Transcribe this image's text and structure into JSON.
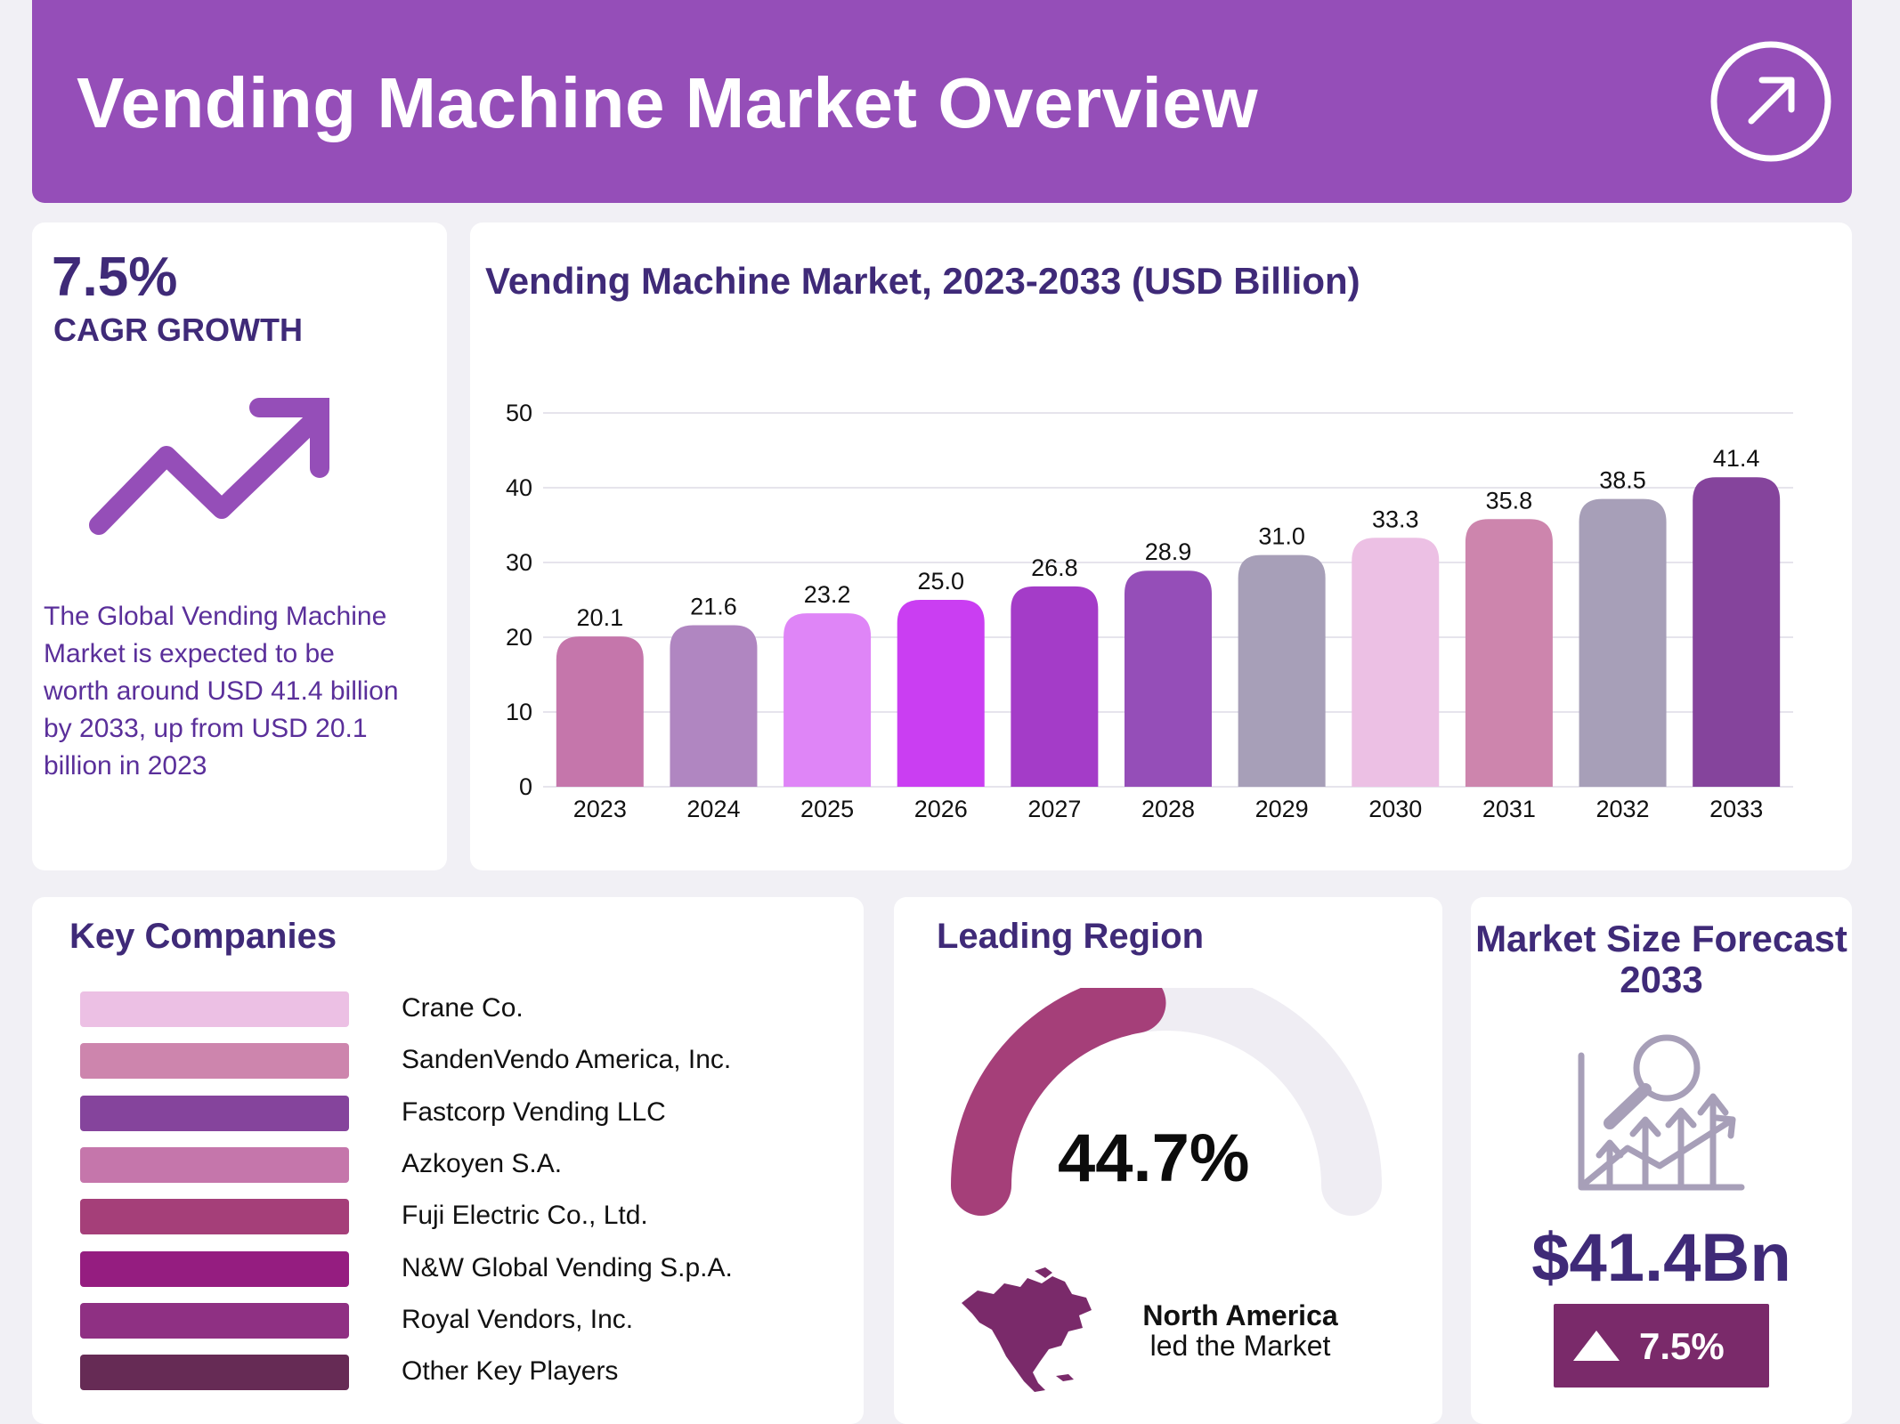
{
  "header": {
    "title": "Vending Machine Market Overview",
    "icon": "arrow-up-right-circle-icon"
  },
  "cagr": {
    "value": "7.5%",
    "label": "CAGR GROWTH",
    "description": "The Global Vending Machine Market is expected to be worth around USD 41.4 billion by 2033, up from USD 20.1 billion in 2023",
    "icon": "trend-up-arrow-icon"
  },
  "chart_title": "Vending Machine Market, 2023-2033 (USD Billion)",
  "chart_data": {
    "type": "bar",
    "title": "Vending Machine Market, 2023-2033 (USD Billion)",
    "categories": [
      "2023",
      "2024",
      "2025",
      "2026",
      "2027",
      "2028",
      "2029",
      "2030",
      "2031",
      "2032",
      "2033"
    ],
    "values": [
      20.1,
      21.6,
      23.2,
      25.0,
      26.8,
      28.9,
      31.0,
      33.3,
      35.8,
      38.5,
      41.4
    ],
    "value_labels": [
      "20.1",
      "21.6",
      "23.2",
      "25.0",
      "26.8",
      "28.9",
      "31.0",
      "33.3",
      "35.8",
      "38.5",
      "41.4"
    ],
    "bar_colors": [
      "#c576ab",
      "#b086c1",
      "#df85f7",
      "#ca3ef2",
      "#a43cc8",
      "#954eb8",
      "#a79fb8",
      "#ecc0e4",
      "#cd85ad",
      "#a79fb8",
      "#85449c"
    ],
    "ylim": [
      0,
      50
    ],
    "yticks": [
      0,
      10,
      20,
      30,
      40,
      50
    ],
    "grid": true,
    "xlabel": "",
    "ylabel": ""
  },
  "companies": {
    "title": "Key Companies",
    "items": [
      {
        "name": "Crane Co.",
        "color": "#ecc0e4"
      },
      {
        "name": "SandenVendo America, Inc.",
        "color": "#cd85ad"
      },
      {
        "name": "Fastcorp Vending LLC",
        "color": "#85449c"
      },
      {
        "name": "Azkoyen S.A.",
        "color": "#c576ab"
      },
      {
        "name": "Fuji Electric Co., Ltd.",
        "color": "#a53f79"
      },
      {
        "name": "N&W Global Vending S.p.A.",
        "color": "#951d80"
      },
      {
        "name": "Royal Vendors, Inc.",
        "color": "#8f3083"
      },
      {
        "name": "Other Key Players",
        "color": "#662b55"
      }
    ]
  },
  "region": {
    "title": "Leading Region",
    "share_value": 44.7,
    "share": "44.7%",
    "name": "North America",
    "note": "led the Market",
    "gauge_color": "#a53f79",
    "track_color": "#efedf3",
    "icon": "north-america-map-icon"
  },
  "forecast": {
    "title": "Market Size Forecast 2033",
    "value": "$41.4Bn",
    "growth": "7.5%",
    "badge_color": "#7a2a6a",
    "icon": "growth-chart-magnifier-icon",
    "arrow_icon": "triangle-up-icon"
  }
}
